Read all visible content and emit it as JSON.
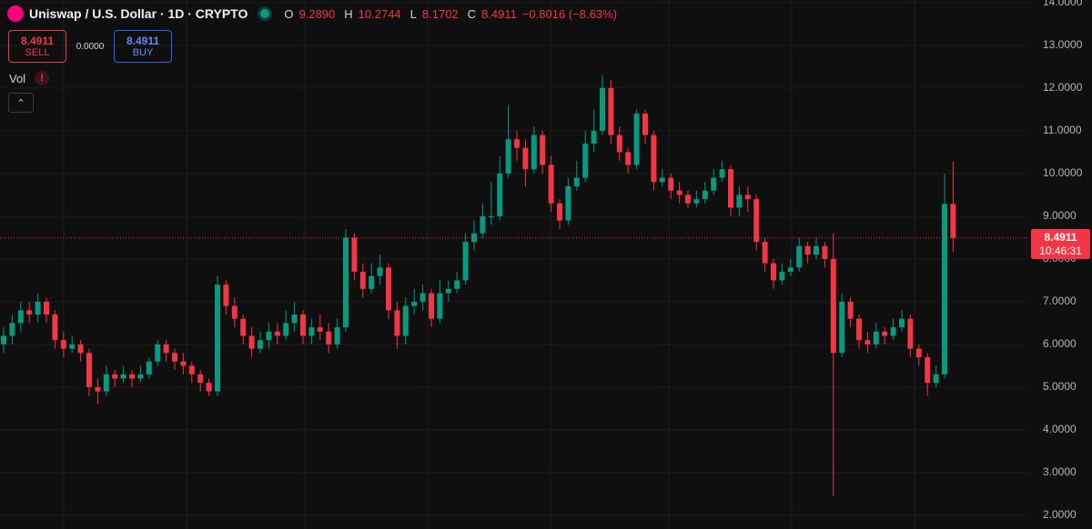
{
  "header": {
    "symbol": "Uniswap / U.S. Dollar · 1D · CRYPTO",
    "open_label": "O",
    "open": "9.2890",
    "high_label": "H",
    "high": "10.2744",
    "low_label": "L",
    "low": "8.1702",
    "close_label": "C",
    "close": "8.4911",
    "change": "−0.8016 (−8.63%)"
  },
  "trade": {
    "sell_price": "8.4911",
    "sell": "SELL",
    "spread": "0.0000",
    "buy_price": "8.4911",
    "buy": "BUY"
  },
  "indicator": {
    "name": "Vol"
  },
  "chart_data": {
    "type": "candlestick",
    "open": [
      6.0,
      6.2,
      6.5,
      6.8,
      6.7,
      7.0,
      6.7,
      6.1,
      5.9,
      6.0,
      5.8,
      5.0,
      4.9,
      5.3,
      5.2,
      5.3,
      5.2,
      5.3,
      5.6,
      6.0,
      5.8,
      5.6,
      5.5,
      5.3,
      5.1,
      4.9,
      7.4,
      6.9,
      6.6,
      6.2,
      5.9,
      6.1,
      6.3,
      6.2,
      6.5,
      6.7,
      6.2,
      6.4,
      6.3,
      6.0,
      6.4,
      8.5,
      7.7,
      7.3,
      7.6,
      7.8,
      6.8,
      6.2,
      6.9,
      7.0,
      7.2,
      6.6,
      7.2,
      7.3,
      7.5,
      8.4,
      8.6,
      9.0,
      9.0,
      10.0,
      10.8,
      10.6,
      10.1,
      10.9,
      10.2,
      9.3,
      8.9,
      9.7,
      9.9,
      10.7,
      11.0,
      12.0,
      10.9,
      10.5,
      10.2,
      11.4,
      10.9,
      9.8,
      9.9,
      9.6,
      9.5,
      9.3,
      9.4,
      9.6,
      9.9,
      10.1,
      9.2,
      9.5,
      9.4,
      8.4,
      7.9,
      7.5,
      7.7,
      7.8,
      8.3,
      8.1,
      8.3,
      8.0,
      5.8,
      7.0,
      6.6,
      6.1,
      6.0,
      6.3,
      6.2,
      6.4,
      6.6,
      5.9,
      5.7,
      5.1,
      5.3,
      9.289
    ],
    "high": [
      6.4,
      6.7,
      7.0,
      7.0,
      7.2,
      7.1,
      6.8,
      6.3,
      6.2,
      6.1,
      5.9,
      5.2,
      5.5,
      5.4,
      5.5,
      5.4,
      5.5,
      5.7,
      6.1,
      6.1,
      5.9,
      5.8,
      5.6,
      5.4,
      5.2,
      7.6,
      7.5,
      7.1,
      6.7,
      6.4,
      6.3,
      6.5,
      6.5,
      6.8,
      7.0,
      6.8,
      6.6,
      6.7,
      6.5,
      6.6,
      8.7,
      8.6,
      7.9,
      7.9,
      8.1,
      7.9,
      7.0,
      7.1,
      7.3,
      7.4,
      7.3,
      7.5,
      7.5,
      7.7,
      8.6,
      8.9,
      9.3,
      9.8,
      10.4,
      11.6,
      11.0,
      10.8,
      11.1,
      11.0,
      10.4,
      9.4,
      9.9,
      10.3,
      11.0,
      11.5,
      12.3,
      12.2,
      11.1,
      10.6,
      11.5,
      11.5,
      11.0,
      10.1,
      10.0,
      9.8,
      9.6,
      9.6,
      9.8,
      10.1,
      10.3,
      10.2,
      9.7,
      9.7,
      9.5,
      8.5,
      8.0,
      7.9,
      8.0,
      8.5,
      8.4,
      8.5,
      8.4,
      8.6,
      7.2,
      7.1,
      6.7,
      6.3,
      6.5,
      6.4,
      6.6,
      6.8,
      6.7,
      6.0,
      5.8,
      5.5,
      10.0,
      10.2744
    ],
    "low": [
      5.8,
      6.0,
      6.3,
      6.5,
      6.5,
      6.5,
      5.9,
      5.7,
      5.8,
      5.6,
      4.8,
      4.6,
      4.8,
      5.0,
      5.1,
      5.0,
      5.1,
      5.2,
      5.5,
      5.6,
      5.4,
      5.3,
      5.1,
      4.9,
      4.8,
      4.8,
      6.7,
      6.4,
      6.0,
      5.7,
      5.8,
      5.9,
      6.0,
      6.1,
      6.3,
      6.0,
      6.0,
      6.1,
      5.8,
      5.9,
      6.3,
      7.5,
      7.1,
      7.2,
      7.4,
      6.6,
      5.9,
      6.0,
      6.7,
      6.8,
      6.4,
      6.5,
      7.0,
      7.2,
      7.4,
      8.2,
      8.5,
      8.8,
      8.9,
      9.9,
      10.3,
      9.7,
      10.0,
      10.0,
      9.1,
      8.7,
      8.8,
      9.6,
      9.8,
      10.5,
      10.9,
      10.7,
      10.3,
      10.0,
      10.1,
      10.7,
      9.6,
      9.7,
      9.4,
      9.3,
      9.2,
      9.2,
      9.3,
      9.5,
      9.8,
      9.0,
      9.0,
      9.1,
      8.2,
      7.7,
      7.3,
      7.4,
      7.6,
      7.7,
      7.9,
      8.0,
      7.8,
      2.45,
      5.7,
      6.4,
      5.9,
      5.8,
      5.9,
      6.0,
      6.1,
      6.3,
      5.7,
      5.5,
      4.8,
      5.0,
      5.2,
      8.1702
    ],
    "close": [
      6.2,
      6.5,
      6.8,
      6.7,
      7.0,
      6.7,
      6.1,
      5.9,
      6.0,
      5.8,
      5.0,
      4.9,
      5.3,
      5.2,
      5.3,
      5.2,
      5.3,
      5.6,
      6.0,
      5.8,
      5.6,
      5.5,
      5.3,
      5.1,
      4.9,
      7.4,
      6.9,
      6.6,
      6.2,
      5.9,
      6.1,
      6.3,
      6.2,
      6.5,
      6.7,
      6.2,
      6.4,
      6.3,
      6.0,
      6.4,
      8.5,
      7.7,
      7.3,
      7.6,
      7.8,
      6.8,
      6.2,
      6.9,
      7.0,
      7.2,
      6.6,
      7.2,
      7.3,
      7.5,
      8.4,
      8.6,
      9.0,
      9.0,
      10.0,
      10.8,
      10.6,
      10.1,
      10.9,
      10.2,
      9.3,
      8.9,
      9.7,
      9.9,
      10.7,
      11.0,
      12.0,
      10.9,
      10.5,
      10.2,
      11.4,
      10.9,
      9.8,
      9.9,
      9.6,
      9.5,
      9.3,
      9.4,
      9.6,
      9.9,
      10.1,
      9.2,
      9.5,
      9.4,
      8.4,
      7.9,
      7.5,
      7.7,
      7.8,
      8.3,
      8.1,
      8.3,
      8.0,
      5.8,
      7.0,
      6.6,
      6.1,
      6.0,
      6.3,
      6.2,
      6.4,
      6.6,
      5.9,
      5.7,
      5.1,
      5.3,
      9.289,
      8.4911
    ],
    "up_color": "#089981",
    "down_color": "#f23645",
    "ylim": [
      1.68,
      14.06
    ],
    "yticks": [
      {
        "value": 2,
        "label": "2.0000"
      },
      {
        "value": 3,
        "label": "3.0000"
      },
      {
        "value": 4,
        "label": "4.0000"
      },
      {
        "value": 5,
        "label": "5.0000"
      },
      {
        "value": 6,
        "label": "6.0000"
      },
      {
        "value": 7,
        "label": "7.0000"
      },
      {
        "value": 8,
        "label": "8.0000"
      },
      {
        "value": 9,
        "label": "9.0000"
      },
      {
        "value": 10,
        "label": "10.0000"
      },
      {
        "value": 11,
        "label": "11.0000"
      },
      {
        "value": 12,
        "label": "12.0000"
      },
      {
        "value": 13,
        "label": "13.0000"
      },
      {
        "value": 14,
        "label": "14.0000"
      }
    ],
    "grid": true,
    "last_price_label": "8.4911",
    "countdown": "10:46:31"
  }
}
